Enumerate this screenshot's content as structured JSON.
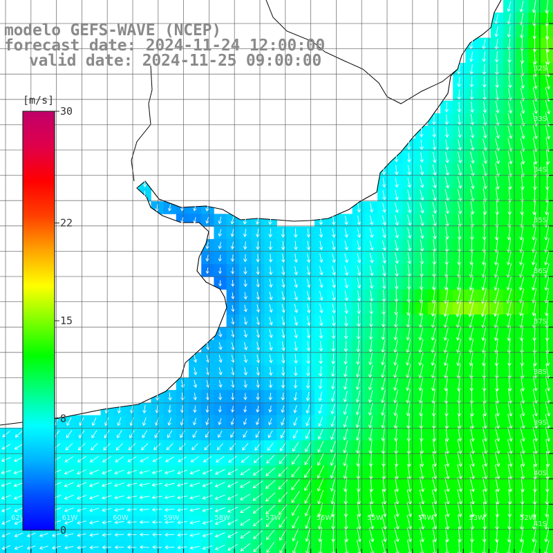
{
  "header": {
    "model_line": "modelo GEFS-WAVE (NCEP)",
    "forecast_line": "forecast date: 2024-11-24 12:00:00",
    "valid_line": "valid date: 2024-11-25 09:00:00"
  },
  "colorbar": {
    "unit": "[m/s]",
    "ticks": [
      "30",
      "22",
      "15",
      "8",
      "0"
    ],
    "tick_values": [
      30,
      22,
      15,
      8,
      0
    ],
    "min": 0,
    "max": 30,
    "stops": [
      "#0000ff",
      "#0050ff",
      "#00b4ff",
      "#00ffff",
      "#00ff80",
      "#00ff00",
      "#80ff00",
      "#ffff00",
      "#ffa500",
      "#ff4000",
      "#ff0000",
      "#e0004a",
      "#c0006a"
    ]
  },
  "grid_labels": {
    "right": [
      "32S",
      "33S",
      "34S",
      "35S",
      "36S",
      "37S",
      "38S",
      "39S",
      "40S",
      "41S"
    ],
    "bottom": [
      "62W",
      "61W",
      "60W",
      "59W",
      "58W",
      "57W",
      "56W",
      "55W",
      "54W",
      "53W",
      "52W"
    ]
  },
  "colors": {
    "land": "#ffffff",
    "coastline": "#000000",
    "grid": "#555555",
    "arrows": "#ffffff",
    "header_text": "#8a8a8a"
  }
}
